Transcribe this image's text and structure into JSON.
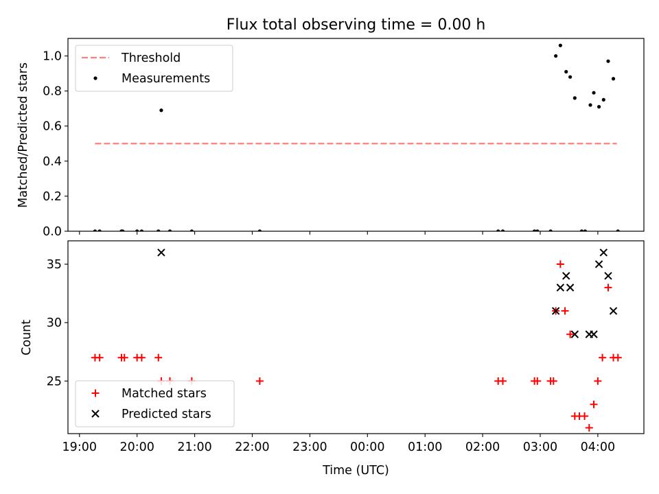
{
  "chart_data": [
    {
      "type": "scatter",
      "title": "Flux total observing time = 0.00 h",
      "xlabel": "",
      "ylabel": "Matched/Predicted stars",
      "xlim": [
        -0.2,
        9.8
      ],
      "ylim": [
        0,
        1.1
      ],
      "yticks": [
        0.0,
        0.2,
        0.4,
        0.6,
        0.8,
        1.0
      ],
      "ytick_labels": [
        "0.0",
        "0.2",
        "0.4",
        "0.6",
        "0.8",
        "1.0"
      ],
      "legend_position": "top-left",
      "series": [
        {
          "name": "Threshold",
          "style": "dashed-line",
          "color": "#ff7f7f",
          "x": [
            0.27,
            9.33
          ],
          "y": [
            0.5,
            0.5
          ]
        },
        {
          "name": "Measurements",
          "style": "dot",
          "color": "#000000",
          "x": [
            0.27,
            0.35,
            0.73,
            0.75,
            1.0,
            1.08,
            1.37,
            1.42,
            1.57,
            1.95,
            3.13,
            7.27,
            7.35,
            7.9,
            7.95,
            8.18,
            8.27,
            8.35,
            8.45,
            8.52,
            8.6,
            8.72,
            8.78,
            8.87,
            8.93,
            9.02,
            9.1,
            9.18,
            9.27,
            9.35
          ],
          "y": [
            0,
            0,
            0,
            0,
            0,
            0,
            0,
            0.69,
            0,
            0,
            0,
            0,
            0,
            0,
            0,
            0,
            1.0,
            1.06,
            0.91,
            0.88,
            0.76,
            0,
            0,
            0.72,
            0.79,
            0.71,
            0.75,
            0.97,
            0.87,
            0
          ]
        }
      ]
    },
    {
      "type": "scatter",
      "title": "",
      "xlabel": "Time (UTC)",
      "ylabel": "Count",
      "xlim": [
        -0.2,
        9.8
      ],
      "ylim": [
        20.5,
        37
      ],
      "yticks": [
        25,
        30,
        35
      ],
      "ytick_labels": [
        "25",
        "30",
        "35"
      ],
      "xticks": [
        0,
        1,
        2,
        3,
        4,
        5,
        6,
        7,
        8,
        9
      ],
      "xtick_labels": [
        "19:00",
        "20:00",
        "21:00",
        "22:00",
        "23:00",
        "00:00",
        "01:00",
        "02:00",
        "03:00",
        "04:00"
      ],
      "legend_position": "bottom-left",
      "series": [
        {
          "name": "Matched stars",
          "style": "plus",
          "color": "#ff0000",
          "x": [
            0.27,
            0.35,
            0.73,
            0.78,
            1.0,
            1.08,
            1.37,
            1.42,
            1.57,
            1.95,
            3.13,
            7.27,
            7.35,
            7.9,
            7.95,
            8.18,
            8.23,
            8.27,
            8.35,
            8.43,
            8.52,
            8.6,
            8.68,
            8.77,
            8.85,
            8.93,
            9.0,
            9.08,
            9.18,
            9.27,
            9.35
          ],
          "y": [
            27,
            27,
            27,
            27,
            27,
            27,
            27,
            25,
            25,
            25,
            25,
            25,
            25,
            25,
            25,
            25,
            25,
            31,
            35,
            31,
            29,
            22,
            22,
            22,
            21,
            23,
            25,
            27,
            33,
            27,
            27
          ]
        },
        {
          "name": "Predicted stars",
          "style": "x",
          "color": "#000000",
          "x": [
            1.42,
            8.27,
            8.35,
            8.45,
            8.52,
            8.6,
            8.85,
            8.93,
            9.02,
            9.1,
            9.18,
            9.27
          ],
          "y": [
            36,
            31,
            33,
            34,
            33,
            29,
            29,
            29,
            35,
            36,
            34,
            31
          ]
        }
      ]
    }
  ]
}
